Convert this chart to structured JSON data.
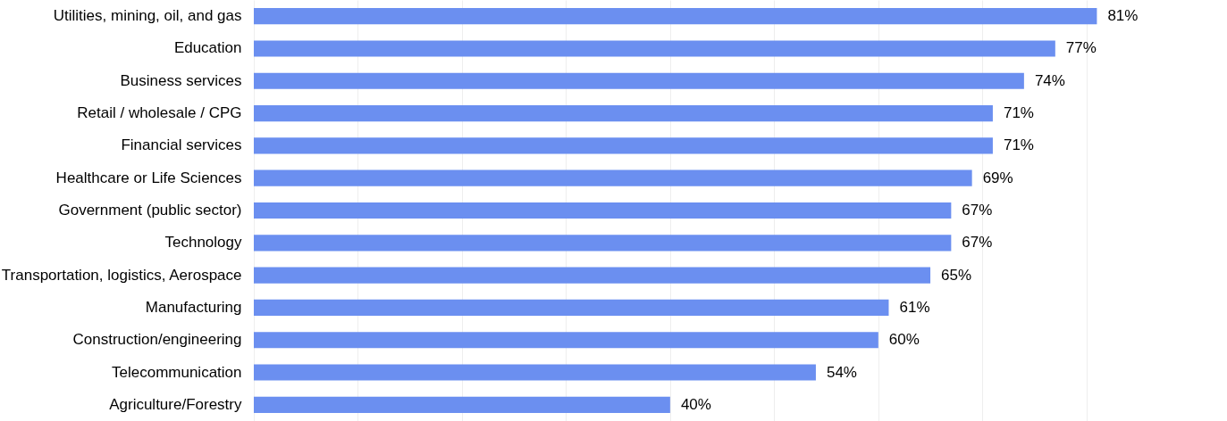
{
  "chart_data": {
    "type": "bar",
    "orientation": "horizontal",
    "categories": [
      "Utilities, mining, oil, and gas",
      "Education",
      "Business services",
      "Retail / wholesale / CPG",
      "Financial services",
      "Healthcare or Life Sciences",
      "Government (public sector)",
      "Technology",
      "Transportation, logistics, Aerospace",
      "Manufacturing",
      "Construction/engineering",
      "Telecommunication",
      "Agriculture/Forestry"
    ],
    "values": [
      81,
      77,
      74,
      71,
      71,
      69,
      67,
      67,
      65,
      61,
      60,
      54,
      40
    ],
    "value_labels": [
      "81%",
      "77%",
      "74%",
      "71%",
      "71%",
      "69%",
      "67%",
      "67%",
      "65%",
      "61%",
      "60%",
      "54%",
      "40%"
    ],
    "color": "#6b8ff0",
    "xlim": [
      0,
      85
    ],
    "xticks": [
      {
        "value": 0,
        "label": null
      },
      {
        "value": 10,
        "label": null
      },
      {
        "value": 20,
        "label": null
      },
      {
        "value": 30,
        "label": null
      },
      {
        "value": 40,
        "label": null
      },
      {
        "value": 50,
        "label": null
      },
      {
        "value": 60,
        "label": null
      },
      {
        "value": 70,
        "label": null
      },
      {
        "value": 80,
        "label": null
      }
    ],
    "grid": "x",
    "tick_labels": "y"
  }
}
